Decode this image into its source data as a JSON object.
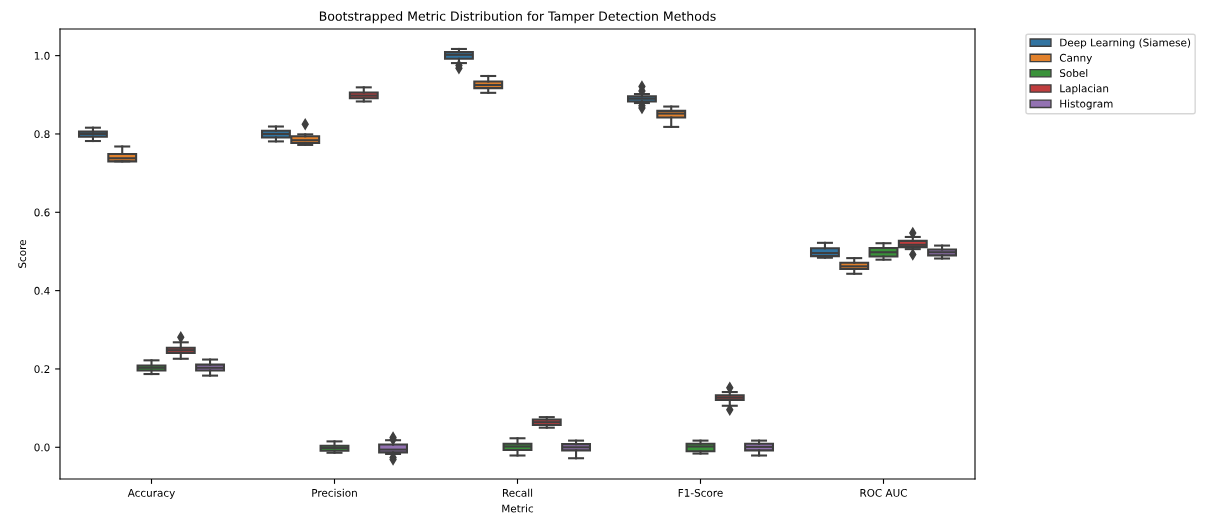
{
  "chart_data": {
    "type": "box",
    "title": "Bootstrapped Metric Distribution for Tamper Detection Methods",
    "xlabel": "Metric",
    "ylabel": "Score",
    "categories": [
      "Accuracy",
      "Precision",
      "Recall",
      "F1-Score",
      "ROC AUC"
    ],
    "ylim": [
      -0.081,
      1.068
    ],
    "yticks": [
      {
        "value": 0,
        "label": "0.0"
      },
      0.2,
      0.4,
      0.6,
      0.8,
      {
        "value": 1,
        "label": "1.0"
      }
    ],
    "grid": false,
    "legend": "top right",
    "series": [
      {
        "name": "Deep Learning (Siamese)",
        "color": "#3274a1",
        "boxes": [
          {
            "low": 0.782,
            "q1": 0.793,
            "median": 0.8,
            "q3": 0.806,
            "high": 0.816
          },
          {
            "low": 0.781,
            "q1": 0.791,
            "median": 0.8,
            "q3": 0.808,
            "high": 0.819
          },
          {
            "low": 0.981,
            "q1": 0.992,
            "median": 1.002,
            "q3": 1.009,
            "high": 1.017,
            "outliers": [
              0.975,
              0.968
            ]
          },
          {
            "low": 0.879,
            "q1": 0.883,
            "median": 0.89,
            "q3": 0.896,
            "high": 0.902,
            "outliers": [
              0.921,
              0.91,
              0.872,
              0.866
            ]
          },
          {
            "low": 0.484,
            "q1": 0.488,
            "median": 0.496,
            "q3": 0.508,
            "high": 0.522
          }
        ]
      },
      {
        "name": "Canny",
        "color": "#e1812c",
        "boxes": [
          {
            "low": 0.73,
            "q1": 0.73,
            "median": 0.738,
            "q3": 0.749,
            "high": 0.768
          },
          {
            "low": 0.772,
            "q1": 0.777,
            "median": 0.784,
            "q3": 0.794,
            "high": 0.799,
            "outliers": [
              0.825
            ]
          },
          {
            "low": 0.905,
            "q1": 0.917,
            "median": 0.925,
            "q3": 0.934,
            "high": 0.948
          },
          {
            "low": 0.818,
            "q1": 0.842,
            "median": 0.852,
            "q3": 0.859,
            "high": 0.87
          },
          {
            "low": 0.443,
            "q1": 0.455,
            "median": 0.462,
            "q3": 0.471,
            "high": 0.483
          }
        ]
      },
      {
        "name": "Sobel",
        "color": "#3a923a",
        "boxes": [
          {
            "low": 0.187,
            "q1": 0.196,
            "median": 0.203,
            "q3": 0.209,
            "high": 0.222
          },
          {
            "low": -0.014,
            "q1": -0.009,
            "median": -0.002,
            "q3": 0.004,
            "high": 0.015
          },
          {
            "low": -0.021,
            "q1": -0.007,
            "median": 0.002,
            "q3": 0.009,
            "high": 0.023
          },
          {
            "low": -0.016,
            "q1": -0.01,
            "median": 0.002,
            "q3": 0.009,
            "high": 0.017
          },
          {
            "low": 0.479,
            "q1": 0.487,
            "median": 0.498,
            "q3": 0.509,
            "high": 0.521
          }
        ]
      },
      {
        "name": "Laplacian",
        "color": "#c03d3e",
        "boxes": [
          {
            "low": 0.226,
            "q1": 0.241,
            "median": 0.248,
            "q3": 0.254,
            "high": 0.268,
            "outliers": [
              0.281
            ]
          },
          {
            "low": 0.883,
            "q1": 0.891,
            "median": 0.898,
            "q3": 0.906,
            "high": 0.919
          },
          {
            "low": 0.05,
            "q1": 0.057,
            "median": 0.064,
            "q3": 0.071,
            "high": 0.077
          },
          {
            "low": 0.106,
            "q1": 0.121,
            "median": 0.127,
            "q3": 0.133,
            "high": 0.141,
            "outliers": [
              0.152,
              0.096
            ]
          },
          {
            "low": 0.506,
            "q1": 0.511,
            "median": 0.517,
            "q3": 0.527,
            "high": 0.537,
            "outliers": [
              0.547,
              0.492
            ]
          }
        ]
      },
      {
        "name": "Histogram",
        "color": "#9372b2",
        "boxes": [
          {
            "low": 0.183,
            "q1": 0.196,
            "median": 0.203,
            "q3": 0.211,
            "high": 0.224
          },
          {
            "low": -0.017,
            "q1": -0.013,
            "median": -0.006,
            "q3": 0.007,
            "high": 0.018,
            "outliers": [
              0.025,
              0.02,
              -0.026,
              -0.031
            ]
          },
          {
            "low": -0.028,
            "q1": -0.008,
            "median": 0.0,
            "q3": 0.008,
            "high": 0.017
          },
          {
            "low": -0.021,
            "q1": -0.008,
            "median": 0.001,
            "q3": 0.009,
            "high": 0.017
          },
          {
            "low": 0.482,
            "q1": 0.49,
            "median": 0.498,
            "q3": 0.505,
            "high": 0.515
          }
        ]
      }
    ]
  }
}
